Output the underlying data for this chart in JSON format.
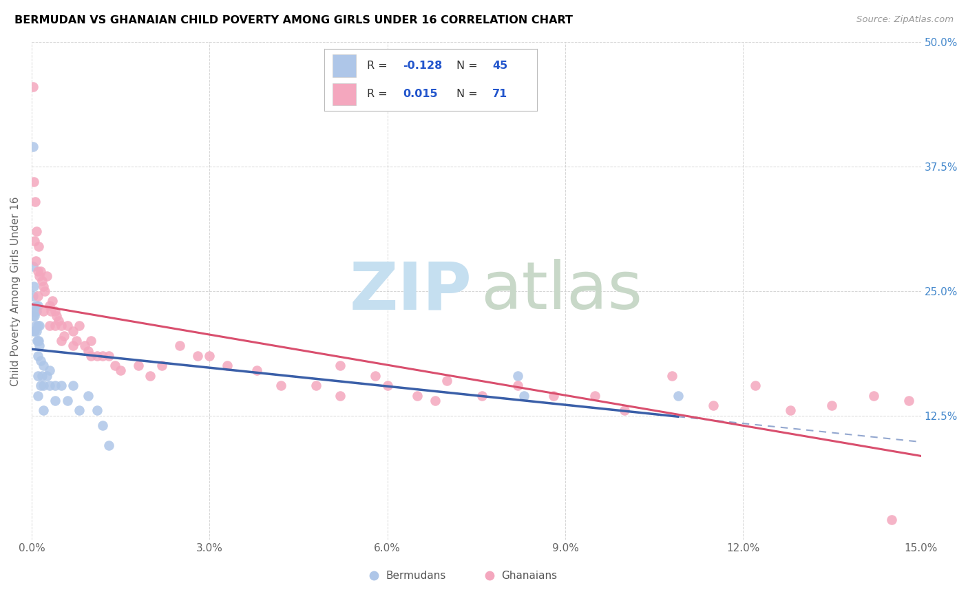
{
  "title": "BERMUDAN VS GHANAIAN CHILD POVERTY AMONG GIRLS UNDER 16 CORRELATION CHART",
  "source": "Source: ZipAtlas.com",
  "ylabel": "Child Poverty Among Girls Under 16",
  "xlim": [
    0.0,
    0.15
  ],
  "ylim": [
    0.0,
    0.5
  ],
  "xticks": [
    0.0,
    0.03,
    0.06,
    0.09,
    0.12,
    0.15
  ],
  "xticklabels": [
    "0.0%",
    "3.0%",
    "6.0%",
    "9.0%",
    "12.0%",
    "15.0%"
  ],
  "yticks_left": [
    0.0,
    0.125,
    0.25,
    0.375,
    0.5
  ],
  "yticks_right": [
    0.0,
    0.125,
    0.25,
    0.375,
    0.5
  ],
  "right_yticklabels": [
    "",
    "12.5%",
    "25.0%",
    "37.5%",
    "50.0%"
  ],
  "legend_r_blue": "-0.128",
  "legend_n_blue": "45",
  "legend_r_pink": "0.015",
  "legend_n_pink": "71",
  "blue_scatter_color": "#aec6e8",
  "pink_scatter_color": "#f4a7be",
  "blue_line_color": "#3a5fa8",
  "pink_line_color": "#d94f6e",
  "legend_text_color": "#333333",
  "legend_value_color": "#2255cc",
  "right_tick_color": "#4488cc",
  "grid_color": "#cccccc",
  "watermark_zip_color": "#c5dff0",
  "watermark_atlas_color": "#c8d8c8",
  "bermudans_x": [
    0.0002,
    0.0002,
    0.0002,
    0.0002,
    0.0003,
    0.0003,
    0.0003,
    0.0005,
    0.0005,
    0.0007,
    0.0007,
    0.0008,
    0.0008,
    0.0009,
    0.001,
    0.001,
    0.001,
    0.001,
    0.001,
    0.001,
    0.0012,
    0.0013,
    0.0013,
    0.0015,
    0.0015,
    0.0018,
    0.002,
    0.002,
    0.002,
    0.0025,
    0.003,
    0.003,
    0.004,
    0.004,
    0.005,
    0.006,
    0.007,
    0.008,
    0.0095,
    0.011,
    0.012,
    0.013,
    0.082,
    0.083,
    0.109
  ],
  "bermudans_y": [
    0.395,
    0.275,
    0.245,
    0.225,
    0.255,
    0.23,
    0.21,
    0.225,
    0.21,
    0.235,
    0.215,
    0.23,
    0.21,
    0.2,
    0.235,
    0.215,
    0.2,
    0.185,
    0.165,
    0.145,
    0.2,
    0.215,
    0.195,
    0.18,
    0.155,
    0.165,
    0.175,
    0.155,
    0.13,
    0.165,
    0.17,
    0.155,
    0.155,
    0.14,
    0.155,
    0.14,
    0.155,
    0.13,
    0.145,
    0.13,
    0.115,
    0.095,
    0.165,
    0.145,
    0.145
  ],
  "ghanaians_x": [
    0.0002,
    0.0004,
    0.0005,
    0.0006,
    0.0007,
    0.0008,
    0.001,
    0.001,
    0.0012,
    0.0013,
    0.0015,
    0.0017,
    0.002,
    0.002,
    0.0022,
    0.0025,
    0.003,
    0.003,
    0.0033,
    0.0035,
    0.004,
    0.004,
    0.0042,
    0.0045,
    0.005,
    0.005,
    0.0055,
    0.006,
    0.007,
    0.007,
    0.0075,
    0.008,
    0.009,
    0.0095,
    0.01,
    0.01,
    0.011,
    0.012,
    0.013,
    0.014,
    0.015,
    0.018,
    0.02,
    0.022,
    0.025,
    0.028,
    0.03,
    0.033,
    0.038,
    0.042,
    0.048,
    0.052,
    0.058,
    0.065,
    0.07,
    0.076,
    0.082,
    0.088,
    0.095,
    0.1,
    0.108,
    0.115,
    0.122,
    0.128,
    0.135,
    0.142,
    0.148,
    0.052,
    0.06,
    0.068,
    0.145
  ],
  "ghanaians_y": [
    0.455,
    0.36,
    0.3,
    0.34,
    0.28,
    0.31,
    0.27,
    0.245,
    0.295,
    0.265,
    0.27,
    0.26,
    0.255,
    0.23,
    0.25,
    0.265,
    0.235,
    0.215,
    0.23,
    0.24,
    0.23,
    0.215,
    0.225,
    0.22,
    0.215,
    0.2,
    0.205,
    0.215,
    0.21,
    0.195,
    0.2,
    0.215,
    0.195,
    0.19,
    0.2,
    0.185,
    0.185,
    0.185,
    0.185,
    0.175,
    0.17,
    0.175,
    0.165,
    0.175,
    0.195,
    0.185,
    0.185,
    0.175,
    0.17,
    0.155,
    0.155,
    0.145,
    0.165,
    0.145,
    0.16,
    0.145,
    0.155,
    0.145,
    0.145,
    0.13,
    0.165,
    0.135,
    0.155,
    0.13,
    0.135,
    0.145,
    0.14,
    0.175,
    0.155,
    0.14,
    0.02
  ]
}
